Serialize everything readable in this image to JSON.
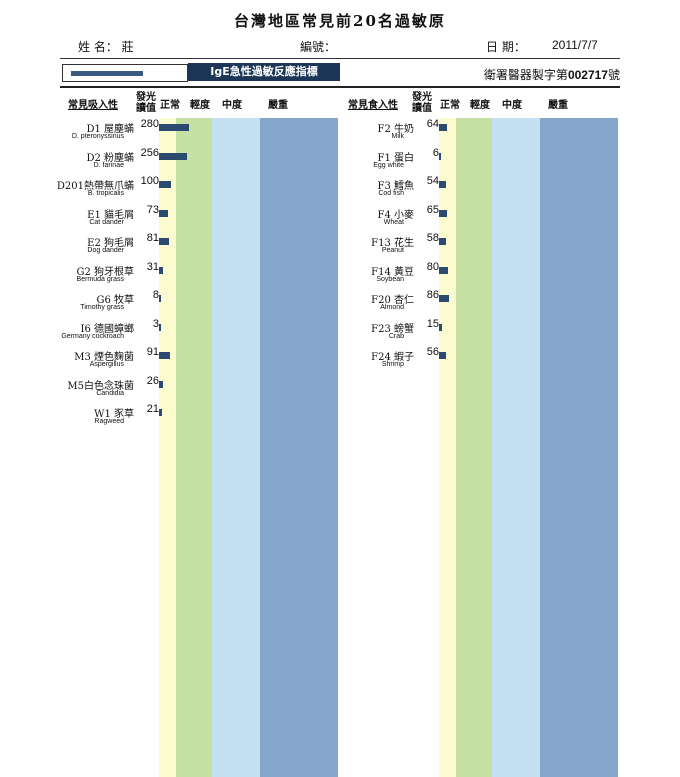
{
  "title": "台灣地區常見前20名過敏原",
  "header": {
    "name_label": "姓 名：  莊",
    "code_label": "編號：",
    "date_label": "日 期：",
    "date_value": "2011/7/7",
    "legend_label": "IgE急性過敏反應指標",
    "license_prefix": "衛署醫器製字第",
    "license_number": "002717",
    "license_suffix": "號"
  },
  "columns": {
    "left_title": "常見吸入性",
    "right_title": "常見食入性",
    "value_title_1": "發光",
    "value_title_2": "讀值",
    "normal": "正常",
    "mild": "輕度",
    "moderate": "中度",
    "severe": "嚴重"
  },
  "colors": {
    "normal": "#fbfbd0",
    "mild": "#c7e0a4",
    "moderate": "#c5dff3",
    "severe": "#86a7cc",
    "bar": "#2b4a70"
  },
  "inhalants": [
    {
      "code_name": "D1 屋塵蟎",
      "english": "D. pteronyssinus",
      "value": 280
    },
    {
      "code_name": "D2 粉塵蟎",
      "english": "D. farinae",
      "value": 256
    },
    {
      "code_name": "D201熱帶無爪蟎",
      "english": "B. tropicalis",
      "value": 100
    },
    {
      "code_name": "E1 貓毛屑",
      "english": "Cat dander",
      "value": 73
    },
    {
      "code_name": "E2 狗毛屑",
      "english": "Dog dander",
      "value": 81
    },
    {
      "code_name": "G2 狗牙根草",
      "english": "Bermuda grass",
      "value": 31
    },
    {
      "code_name": "G6 牧草",
      "english": "Timothy grass",
      "value": 8
    },
    {
      "code_name": "I6 德國蟑螂",
      "english": "Germany cockroach",
      "value": 3
    },
    {
      "code_name": "M3 煙色麴菌",
      "english": "Aspergillus",
      "value": 91
    },
    {
      "code_name": "M5白色念珠菌",
      "english": "Candidia",
      "value": 26
    },
    {
      "code_name": "W1 豕草",
      "english": "Ragweed",
      "value": 21
    }
  ],
  "foods": [
    {
      "code_name": "F2 牛奶",
      "english": "Milk",
      "value": 64
    },
    {
      "code_name": "F1 蛋白",
      "english": "Egg white",
      "value": 6
    },
    {
      "code_name": "F3 鱈魚",
      "english": "Cod fish",
      "value": 54
    },
    {
      "code_name": "F4 小麥",
      "english": "Wheat",
      "value": 65
    },
    {
      "code_name": "F13 花生",
      "english": "Peanut",
      "value": 58
    },
    {
      "code_name": "F14 黃豆",
      "english": "Soybean",
      "value": 80
    },
    {
      "code_name": "F20 杏仁",
      "english": "Almond",
      "value": 86
    },
    {
      "code_name": "F23 螃蟹",
      "english": "Crab",
      "value": 15
    },
    {
      "code_name": "F24 蝦子",
      "english": "Shrimp",
      "value": 56
    }
  ]
}
